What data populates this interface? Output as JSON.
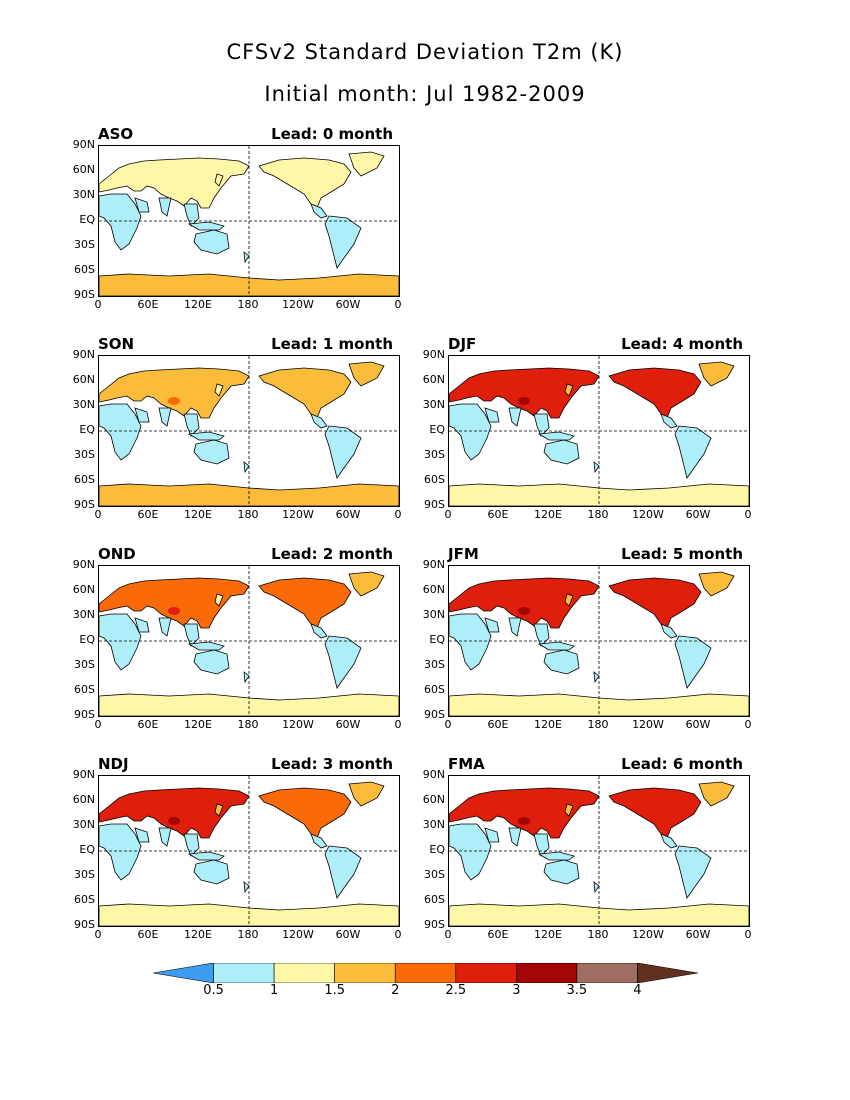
{
  "header": {
    "title": "CFSv2 Standard Deviation T2m (K)",
    "subtitle": "Initial month: Jul 1982-2009"
  },
  "axes": {
    "lat_labels": [
      "90N",
      "60N",
      "30N",
      "EQ",
      "30S",
      "60S",
      "90S"
    ],
    "lon_labels": [
      "0",
      "60E",
      "120E",
      "180",
      "120W",
      "60W",
      "0"
    ]
  },
  "panels": [
    {
      "season": "ASO",
      "lead": "Lead: 0 month",
      "intensity": 0
    },
    {
      "season": "SON",
      "lead": "Lead: 1 month",
      "intensity": 1
    },
    {
      "season": "OND",
      "lead": "Lead: 2 month",
      "intensity": 2
    },
    {
      "season": "NDJ",
      "lead": "Lead: 3 month",
      "intensity": 3
    },
    {
      "season": "DJF",
      "lead": "Lead: 4 month",
      "intensity": 4
    },
    {
      "season": "JFM",
      "lead": "Lead: 5 month",
      "intensity": 4
    },
    {
      "season": "FMA",
      "lead": "Lead: 6 month",
      "intensity": 4
    }
  ],
  "colorbar": {
    "levels": [
      "0.5",
      "1",
      "1.5",
      "2",
      "2.5",
      "3",
      "3.5",
      "4"
    ],
    "colors": [
      "#3d9cf0",
      "#aeeef8",
      "#fff7a8",
      "#fbbc3c",
      "#fb6a08",
      "#e01e0c",
      "#a40606",
      "#a06e60",
      "#603020"
    ]
  }
}
